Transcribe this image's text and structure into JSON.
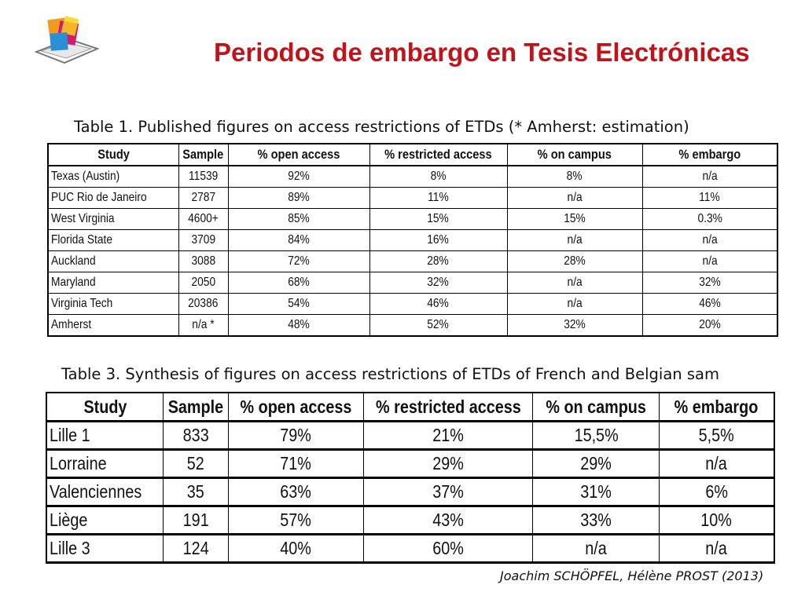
{
  "slide": {
    "title": "Periodos de embargo en Tesis Electrónicas",
    "credit": "Joachim SCHÖPFEL, Hélène PROST (2013)"
  },
  "table1": {
    "caption": "Table 1. Published figures on access restrictions of ETDs (* Amherst: estimation)",
    "headers": [
      "Study",
      "Sample",
      "% open access",
      "% restricted access",
      "% on campus",
      "% embargo"
    ],
    "rows": [
      [
        "Texas (Austin)",
        "11539",
        "92%",
        "8%",
        "8%",
        "n/a"
      ],
      [
        "PUC Rio de Janeiro",
        "2787",
        "89%",
        "11%",
        "n/a",
        "11%"
      ],
      [
        "West Virginia",
        "4600+",
        "85%",
        "15%",
        "15%",
        "0.3%"
      ],
      [
        "Florida State",
        "3709",
        "84%",
        "16%",
        "n/a",
        "n/a"
      ],
      [
        "Auckland",
        "3088",
        "72%",
        "28%",
        "28%",
        "n/a"
      ],
      [
        "Maryland",
        "2050",
        "68%",
        "32%",
        "n/a",
        "32%"
      ],
      [
        "Virginia Tech",
        "20386",
        "54%",
        "46%",
        "n/a",
        "46%"
      ],
      [
        "Amherst",
        "n/a *",
        "48%",
        "52%",
        "32%",
        "20%"
      ]
    ]
  },
  "table3": {
    "caption": "Table 3. Synthesis of figures on access restrictions of ETDs of French and Belgian sam",
    "headers": [
      "Study",
      "Sample",
      "% open access",
      "% restricted access",
      "% on campus",
      "% embargo"
    ],
    "rows": [
      [
        "Lille 1",
        "833",
        "79%",
        "21%",
        "15,5%",
        "5,5%"
      ],
      [
        "Lorraine",
        "52",
        "71%",
        "29%",
        "29%",
        "n/a"
      ],
      [
        "Valenciennes",
        "35",
        "63%",
        "37%",
        "31%",
        "6%"
      ],
      [
        "Liège",
        "191",
        "57%",
        "43%",
        "33%",
        "10%"
      ],
      [
        "Lille 3",
        "124",
        "40%",
        "60%",
        "n/a",
        "n/a"
      ]
    ]
  },
  "colors": {
    "title": "#c0141b",
    "logo_orange": "#f39a1e",
    "logo_magenta": "#d01e6e",
    "logo_blue": "#2a8fd6",
    "logo_yellow": "#f7d21a"
  },
  "icons": {
    "logo": "stacked-colored-squares-logo"
  }
}
